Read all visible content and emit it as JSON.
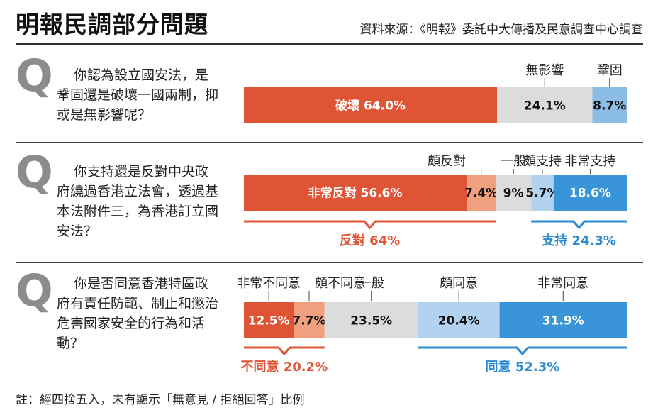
{
  "header": {
    "title": "明報民調部分問題",
    "source": "資料來源：《明報》委託中大傳播及民意調查中心調查"
  },
  "footnote": "註：經四捨五入，未有顯示「無意見 / 拒絕回答」比例",
  "questions": [
    {
      "mark": "Q",
      "text": "你認為設立國安法，是鞏固還是破壞一國兩制，抑或是無影響呢？"
    },
    {
      "mark": "Q",
      "text": "你支持還是反對中央政府繞過香港立法會，透過基本法附件三，為香港訂立國安法？"
    },
    {
      "mark": "Q",
      "text": "你是否同意香港特區政府有責任防範、制止和懲治危害國家安全的行為和活動？"
    }
  ],
  "chart_data": [
    {
      "type": "bar",
      "orientation": "horizontal-stacked",
      "unit": "%",
      "segments": [
        {
          "label": "破壞",
          "value": 64.0,
          "value_text": "破壞 64.0%",
          "color": "#e05436"
        },
        {
          "label": "無影響",
          "value": 24.1,
          "value_text": "24.1%",
          "color": "#dcdcdc"
        },
        {
          "label": "鞏固",
          "value": 8.7,
          "value_text": "8.7%",
          "color": "#8cbde6"
        }
      ],
      "groups": []
    },
    {
      "type": "bar",
      "orientation": "horizontal-stacked",
      "unit": "%",
      "segments": [
        {
          "label": "非常反對",
          "value": 56.6,
          "value_text": "非常反對 56.6%",
          "color": "#e05436"
        },
        {
          "label": "頗反對",
          "value": 7.4,
          "value_text": "7.4%",
          "color": "#f0a07f"
        },
        {
          "label": "一般",
          "value": 9.0,
          "value_text": "9%",
          "color": "#dcdcdc"
        },
        {
          "label": "頗支持",
          "value": 5.7,
          "value_text": "5.7%",
          "color": "#b2d3ef"
        },
        {
          "label": "非常支持",
          "value": 18.6,
          "value_text": "18.6%",
          "color": "#3a95d8"
        }
      ],
      "groups": [
        {
          "label": "反對 64%",
          "from": 0,
          "to": 1,
          "color": "#e05436"
        },
        {
          "label": "支持 24.3%",
          "from": 3,
          "to": 4,
          "color": "#2a8ad2"
        }
      ]
    },
    {
      "type": "bar",
      "orientation": "horizontal-stacked",
      "unit": "%",
      "segments": [
        {
          "label": "非常不同意",
          "value": 12.5,
          "value_text": "12.5%",
          "color": "#e05436"
        },
        {
          "label": "頗不同意",
          "value": 7.7,
          "value_text": "7.7%",
          "color": "#f0a07f"
        },
        {
          "label": "一般",
          "value": 23.5,
          "value_text": "23.5%",
          "color": "#dcdcdc"
        },
        {
          "label": "頗同意",
          "value": 20.4,
          "value_text": "20.4%",
          "color": "#b2d3ef"
        },
        {
          "label": "非常同意",
          "value": 31.9,
          "value_text": "31.9%",
          "color": "#3a95d8"
        }
      ],
      "groups": [
        {
          "label": "不同意 20.2%",
          "from": 0,
          "to": 1,
          "color": "#e05436"
        },
        {
          "label": "同意 52.3%",
          "from": 3,
          "to": 4,
          "color": "#2a8ad2"
        }
      ]
    }
  ]
}
